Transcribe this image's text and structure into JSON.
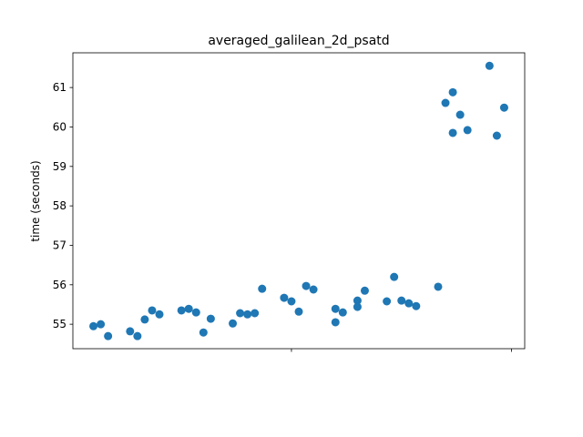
{
  "chart_data": {
    "type": "scatter",
    "title": "averaged_galilean_2d_psatd",
    "y_label": "time (seconds)",
    "color": "#1f77b4",
    "x": [
      0,
      1,
      2,
      5,
      6,
      7,
      8,
      9,
      12,
      13,
      14,
      15,
      16,
      19,
      20,
      21,
      22,
      23,
      26,
      27,
      28,
      29,
      30,
      33,
      33,
      34,
      36,
      36,
      37,
      40,
      41,
      42,
      43,
      44,
      47,
      48,
      49,
      49,
      50,
      51,
      54,
      55,
      56
    ],
    "values": [
      54.95,
      55.0,
      54.7,
      54.82,
      54.7,
      55.12,
      55.35,
      55.25,
      55.35,
      55.39,
      55.3,
      54.79,
      55.14,
      55.02,
      55.28,
      55.25,
      55.28,
      55.9,
      55.67,
      55.58,
      55.32,
      55.97,
      55.88,
      55.39,
      55.05,
      55.3,
      55.6,
      55.44,
      55.85,
      55.58,
      56.2,
      55.6,
      55.53,
      55.46,
      55.95,
      60.61,
      60.88,
      59.85,
      60.31,
      59.92,
      61.55,
      59.78,
      60.49
    ],
    "xlim": [
      -2.8,
      58.8
    ],
    "xticks": [
      27,
      57
    ],
    "ylim": [
      54.38,
      61.88
    ],
    "yticks": [
      55,
      56,
      57,
      58,
      59,
      60,
      61
    ]
  }
}
